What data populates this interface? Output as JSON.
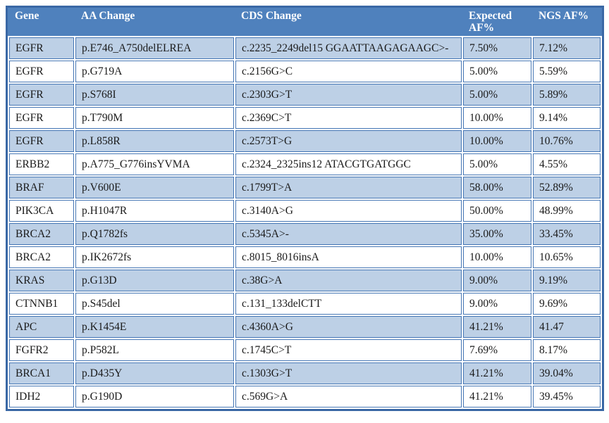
{
  "colors": {
    "header_bg": "#4f81bd",
    "header_text": "#ffffff",
    "band_row_bg": "#bdd0e6",
    "cell_border": "#4576b4",
    "outer_border": "#3a68a5",
    "body_text": "#1a1a1a"
  },
  "table": {
    "columns": [
      "Gene",
      "AA Change",
      "CDS Change",
      "Expected AF%",
      "NGS AF%"
    ],
    "rows": [
      {
        "gene": "EGFR",
        "aa": "p.E746_A750delELREA",
        "cds": "c.2235_2249del15 GGAATTAAGAGAAGC>-",
        "expected": "7.50%",
        "ngs": "7.12%"
      },
      {
        "gene": "EGFR",
        "aa": "p.G719A",
        "cds": "c.2156G>C",
        "expected": "5.00%",
        "ngs": "5.59%"
      },
      {
        "gene": "EGFR",
        "aa": "p.S768I",
        "cds": "c.2303G>T",
        "expected": "5.00%",
        "ngs": "5.89%"
      },
      {
        "gene": "EGFR",
        "aa": "p.T790M",
        "cds": "c.2369C>T",
        "expected": "10.00%",
        "ngs": "9.14%"
      },
      {
        "gene": "EGFR",
        "aa": "p.L858R",
        "cds": "c.2573T>G",
        "expected": "10.00%",
        "ngs": "10.76%"
      },
      {
        "gene": "ERBB2",
        "aa": "p.A775_G776insYVMA",
        "cds": "c.2324_2325ins12 ATACGTGATGGC",
        "expected": "5.00%",
        "ngs": "4.55%"
      },
      {
        "gene": "BRAF",
        "aa": "p.V600E",
        "cds": "c.1799T>A",
        "expected": "58.00%",
        "ngs": "52.89%"
      },
      {
        "gene": "PIK3CA",
        "aa": "p.H1047R",
        "cds": "c.3140A>G",
        "expected": "50.00%",
        "ngs": "48.99%"
      },
      {
        "gene": "BRCA2",
        "aa": "p.Q1782fs",
        "cds": "c.5345A>-",
        "expected": "35.00%",
        "ngs": "33.45%"
      },
      {
        "gene": "BRCA2",
        "aa": "p.IK2672fs",
        "cds": "c.8015_8016insA",
        "expected": "10.00%",
        "ngs": "10.65%"
      },
      {
        "gene": "KRAS",
        "aa": "p.G13D",
        "cds": "c.38G>A",
        "expected": "9.00%",
        "ngs": "9.19%"
      },
      {
        "gene": "CTNNB1",
        "aa": "p.S45del",
        "cds": "c.131_133delCTT",
        "expected": "9.00%",
        "ngs": "9.69%"
      },
      {
        "gene": "APC",
        "aa": "p.K1454E",
        "cds": "c.4360A>G",
        "expected": "41.21%",
        "ngs": "41.47"
      },
      {
        "gene": "FGFR2",
        "aa": "p.P582L",
        "cds": "c.1745C>T",
        "expected": "7.69%",
        "ngs": "8.17%"
      },
      {
        "gene": "BRCA1",
        "aa": "p.D435Y",
        "cds": "c.1303G>T",
        "expected": "41.21%",
        "ngs": "39.04%"
      },
      {
        "gene": "IDH2",
        "aa": "p.G190D",
        "cds": "c.569G>A",
        "expected": "41.21%",
        "ngs": "39.45%"
      }
    ]
  }
}
